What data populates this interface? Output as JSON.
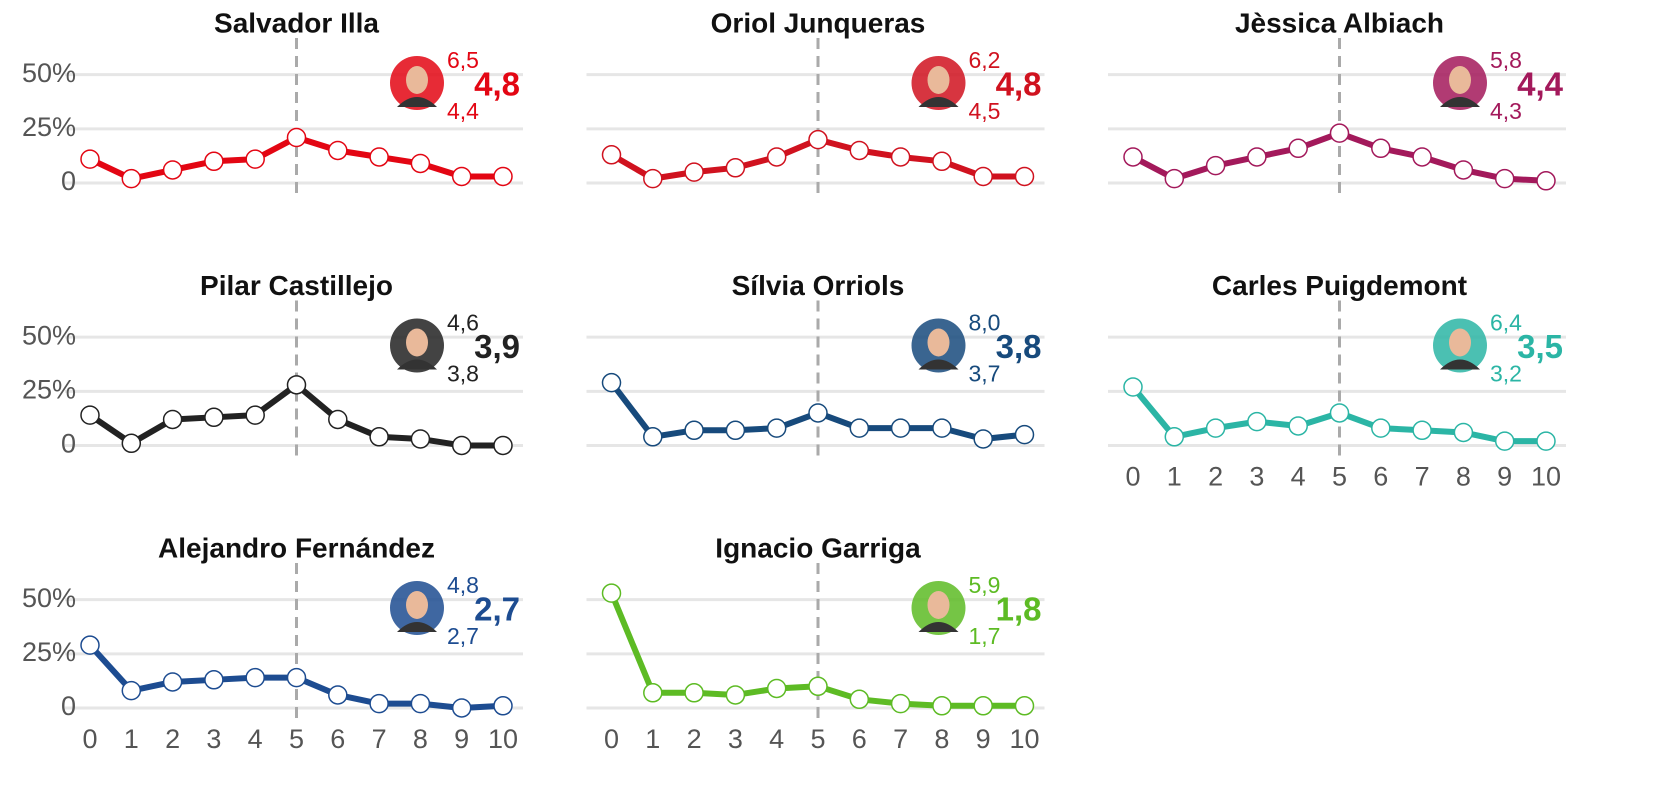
{
  "chart_data": [
    {
      "type": "line",
      "title": "Salvador Illa",
      "color": "#e30613",
      "x": [
        0,
        1,
        2,
        3,
        4,
        5,
        6,
        7,
        8,
        9,
        10
      ],
      "values": [
        11,
        2,
        6,
        10,
        11,
        21,
        15,
        12,
        9,
        3,
        3
      ],
      "xlim": [
        0,
        10
      ],
      "ylim": [
        -5,
        60
      ],
      "yticks": [
        0,
        {
          "value": 25,
          "label": "25%"
        },
        {
          "value": 50,
          "label": "50%"
        }
      ],
      "grid": true,
      "vline": 5,
      "annotation_values": [
        6.5,
        4.8,
        4.4
      ],
      "annotation_labels": [
        "6,5",
        "4,8",
        "4,4"
      ]
    },
    {
      "type": "line",
      "title": "Oriol Junqueras",
      "color": "#d0121f",
      "x": [
        0,
        1,
        2,
        3,
        4,
        5,
        6,
        7,
        8,
        9,
        10
      ],
      "values": [
        13,
        2,
        5,
        7,
        12,
        20,
        15,
        12,
        10,
        3,
        3
      ],
      "xlim": [
        0,
        10
      ],
      "ylim": [
        -5,
        60
      ],
      "yticks": [
        0,
        25,
        50
      ],
      "grid": true,
      "vline": 5,
      "annotation_values": [
        6.2,
        4.8,
        4.5
      ],
      "annotation_labels": [
        "6,2",
        "4,8",
        "4,5"
      ]
    },
    {
      "type": "line",
      "title": "Jèssica Albiach",
      "color": "#a3195b",
      "x": [
        0,
        1,
        2,
        3,
        4,
        5,
        6,
        7,
        8,
        9,
        10
      ],
      "values": [
        12,
        2,
        8,
        12,
        16,
        23,
        16,
        12,
        6,
        2,
        1
      ],
      "xlim": [
        0,
        10
      ],
      "ylim": [
        -5,
        60
      ],
      "yticks": [
        0,
        25,
        50
      ],
      "grid": true,
      "vline": 5,
      "annotation_values": [
        5.8,
        4.4,
        4.3
      ],
      "annotation_labels": [
        "5,8",
        "4,4",
        "4,3"
      ]
    },
    {
      "type": "line",
      "title": "Pilar Castillejo",
      "color": "#222222",
      "x": [
        0,
        1,
        2,
        3,
        4,
        5,
        6,
        7,
        8,
        9,
        10
      ],
      "values": [
        14,
        1,
        12,
        13,
        14,
        28,
        12,
        4,
        3,
        0,
        0
      ],
      "xlim": [
        0,
        10
      ],
      "ylim": [
        -5,
        60
      ],
      "yticks": [
        0,
        {
          "value": 25,
          "label": "25%"
        },
        {
          "value": 50,
          "label": "50%"
        }
      ],
      "grid": true,
      "vline": 5,
      "annotation_values": [
        4.6,
        3.9,
        3.8
      ],
      "annotation_labels": [
        "4,6",
        "3,9",
        "3,8"
      ]
    },
    {
      "type": "line",
      "title": "Sílvia Orriols",
      "color": "#174a7c",
      "x": [
        0,
        1,
        2,
        3,
        4,
        5,
        6,
        7,
        8,
        9,
        10
      ],
      "values": [
        29,
        4,
        7,
        7,
        8,
        15,
        8,
        8,
        8,
        3,
        5
      ],
      "xlim": [
        0,
        10
      ],
      "ylim": [
        -5,
        60
      ],
      "yticks": [
        0,
        25,
        50
      ],
      "grid": true,
      "vline": 5,
      "annotation_values": [
        8.0,
        3.8,
        3.7
      ],
      "annotation_labels": [
        "8,0",
        "3,8",
        "3,7"
      ]
    },
    {
      "type": "line",
      "title": "Carles Puigdemont",
      "color": "#2bb5a5",
      "x": [
        0,
        1,
        2,
        3,
        4,
        5,
        6,
        7,
        8,
        9,
        10
      ],
      "values": [
        27,
        4,
        8,
        11,
        9,
        15,
        8,
        7,
        6,
        2,
        2
      ],
      "xlim": [
        0,
        10
      ],
      "ylim": [
        -5,
        60
      ],
      "yticks": [
        0,
        25,
        50
      ],
      "xticks": [
        0,
        1,
        2,
        3,
        4,
        5,
        6,
        7,
        8,
        9,
        10
      ],
      "grid": true,
      "vline": 5,
      "annotation_values": [
        6.4,
        3.5,
        3.2
      ],
      "annotation_labels": [
        "6,4",
        "3,5",
        "3,2"
      ]
    },
    {
      "type": "line",
      "title": "Alejandro Fernández",
      "color": "#1d4c91",
      "x": [
        0,
        1,
        2,
        3,
        4,
        5,
        6,
        7,
        8,
        9,
        10
      ],
      "values": [
        29,
        8,
        12,
        13,
        14,
        14,
        6,
        2,
        2,
        0,
        1
      ],
      "xlim": [
        0,
        10
      ],
      "ylim": [
        -5,
        60
      ],
      "yticks": [
        0,
        {
          "value": 25,
          "label": "25%"
        },
        {
          "value": 50,
          "label": "50%"
        }
      ],
      "xticks": [
        0,
        1,
        2,
        3,
        4,
        5,
        6,
        7,
        8,
        9,
        10
      ],
      "grid": true,
      "vline": 5,
      "annotation_values": [
        4.8,
        2.7,
        2.7
      ],
      "annotation_labels": [
        "4,8",
        "2,7",
        "2,7"
      ]
    },
    {
      "type": "line",
      "title": "Ignacio Garriga",
      "color": "#5dbb24",
      "x": [
        0,
        1,
        2,
        3,
        4,
        5,
        6,
        7,
        8,
        9,
        10
      ],
      "values": [
        53,
        7,
        7,
        6,
        9,
        10,
        4,
        2,
        1,
        1,
        1
      ],
      "xlim": [
        0,
        10
      ],
      "ylim": [
        -5,
        60
      ],
      "yticks": [
        0,
        25,
        50
      ],
      "xticks": [
        0,
        1,
        2,
        3,
        4,
        5,
        6,
        7,
        8,
        9,
        10
      ],
      "grid": true,
      "vline": 5,
      "annotation_values": [
        5.9,
        1.8,
        1.7
      ],
      "annotation_labels": [
        "5,9",
        "1,8",
        "1,7"
      ]
    }
  ]
}
